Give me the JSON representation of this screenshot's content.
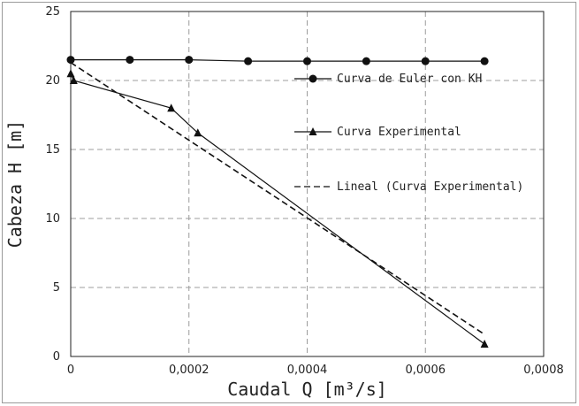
{
  "chart_data": {
    "type": "line",
    "title": "",
    "xlabel": "Caudal Q [m³/s]",
    "ylabel": "Cabeza H [m]",
    "xlim": [
      0,
      0.0008
    ],
    "ylim": [
      0,
      25
    ],
    "x_ticks": [
      "0",
      "0,0002",
      "0,0004",
      "0,0006",
      "0,0008"
    ],
    "y_ticks": [
      "0",
      "5",
      "10",
      "15",
      "20",
      "25"
    ],
    "grid": true,
    "legend_position": "top-right",
    "series": [
      {
        "name": "Curva de Euler con KH",
        "marker": "circle",
        "style": "solid",
        "x": [
          0,
          0.0001,
          0.0002,
          0.0003,
          0.0004,
          0.0005,
          0.0006,
          0.0007
        ],
        "y": [
          21.5,
          21.5,
          21.5,
          21.4,
          21.4,
          21.4,
          21.4,
          21.4
        ]
      },
      {
        "name": "Curva Experimental",
        "marker": "triangle",
        "style": "solid",
        "x": [
          0,
          5e-06,
          0.00017,
          0.000215,
          0.0007
        ],
        "y": [
          20.5,
          20.0,
          18.0,
          16.2,
          0.9
        ]
      },
      {
        "name": "Lineal (Curva Experimental)",
        "marker": "none",
        "style": "dashed",
        "x": [
          0,
          0.0007
        ],
        "y": [
          21.3,
          1.6
        ]
      }
    ]
  }
}
